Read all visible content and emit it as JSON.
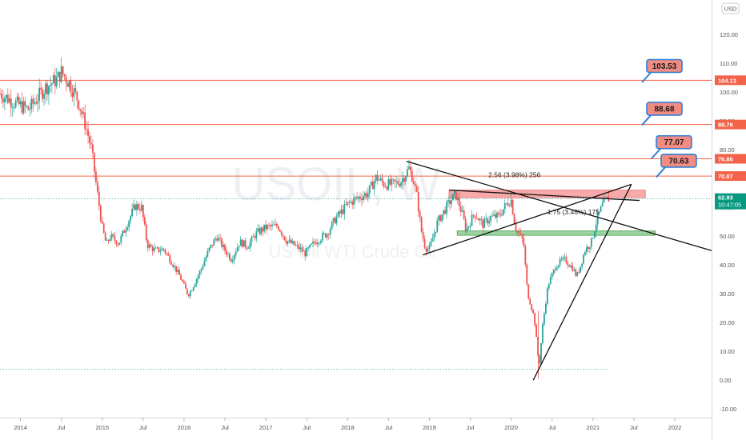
{
  "chart_data": {
    "type": "candlestick",
    "currency": "USD",
    "watermark": {
      "symbol": "USOIL, W",
      "name": "US Oil WTI Crude Oil"
    },
    "ylim": [
      -13,
      132
    ],
    "price_ticks": [
      "120.00",
      "110.00",
      "100.00",
      "90.00",
      "80.00",
      "70.00",
      "60.00",
      "50.00",
      "40.00",
      "30.00",
      "20.00",
      "10.00",
      "0.00",
      "-10.00"
    ],
    "price_tick_values": [
      120,
      110,
      100,
      90,
      80,
      70,
      60,
      50,
      40,
      30,
      20,
      10,
      0,
      -10
    ],
    "time_ticks": [
      "2014",
      "Jul",
      "2015",
      "Jul",
      "2016",
      "Jul",
      "2017",
      "Jul",
      "2018",
      "Jul",
      "2019",
      "Jul",
      "2020",
      "Jul",
      "2021",
      "Jul",
      "2022"
    ],
    "time_tick_values": [
      2014.0,
      2014.5,
      2015.0,
      2015.5,
      2016.0,
      2016.5,
      2017.0,
      2017.5,
      2018.0,
      2018.5,
      2019.0,
      2019.5,
      2020.0,
      2020.5,
      2021.0,
      2021.5,
      2022.0
    ],
    "series": [
      {
        "values": [
          [
            2013.75,
            99.5
          ],
          [
            2013.95,
            96.0
          ],
          [
            2014.1,
            94.0
          ],
          [
            2014.3,
            101.5
          ],
          [
            2014.45,
            104.5
          ],
          [
            2014.5,
            107.0
          ],
          [
            2014.6,
            103.0
          ],
          [
            2014.7,
            97.5
          ],
          [
            2014.8,
            88.0
          ],
          [
            2014.87,
            80.0
          ],
          [
            2014.93,
            67.0
          ],
          [
            2015.0,
            53.0
          ],
          [
            2015.05,
            47.0
          ],
          [
            2015.1,
            50.0
          ],
          [
            2015.2,
            47.5
          ],
          [
            2015.3,
            54.0
          ],
          [
            2015.4,
            60.5
          ],
          [
            2015.48,
            60.0
          ],
          [
            2015.55,
            47.0
          ],
          [
            2015.65,
            45.0
          ],
          [
            2015.75,
            45.5
          ],
          [
            2015.85,
            41.0
          ],
          [
            2015.95,
            36.0
          ],
          [
            2016.05,
            29.5
          ],
          [
            2016.1,
            32.0
          ],
          [
            2016.2,
            38.0
          ],
          [
            2016.3,
            45.0
          ],
          [
            2016.4,
            50.0
          ],
          [
            2016.48,
            46.0
          ],
          [
            2016.58,
            42.0
          ],
          [
            2016.68,
            48.0
          ],
          [
            2016.78,
            46.5
          ],
          [
            2016.88,
            51.0
          ],
          [
            2017.0,
            53.0
          ],
          [
            2017.15,
            53.5
          ],
          [
            2017.25,
            48.5
          ],
          [
            2017.4,
            46.0
          ],
          [
            2017.48,
            44.0
          ],
          [
            2017.6,
            48.0
          ],
          [
            2017.75,
            51.0
          ],
          [
            2017.85,
            56.0
          ],
          [
            2018.0,
            61.0
          ],
          [
            2018.1,
            63.0
          ],
          [
            2018.25,
            65.0
          ],
          [
            2018.35,
            70.5
          ],
          [
            2018.45,
            68.0
          ],
          [
            2018.55,
            68.0
          ],
          [
            2018.65,
            69.0
          ],
          [
            2018.75,
            73.5
          ],
          [
            2018.8,
            70.0
          ],
          [
            2018.85,
            63.5
          ],
          [
            2018.9,
            52.0
          ],
          [
            2018.95,
            46.0
          ],
          [
            2019.0,
            45.5
          ],
          [
            2019.1,
            55.0
          ],
          [
            2019.25,
            62.0
          ],
          [
            2019.32,
            64.5
          ],
          [
            2019.4,
            58.0
          ],
          [
            2019.45,
            52.0
          ],
          [
            2019.55,
            58.0
          ],
          [
            2019.65,
            54.0
          ],
          [
            2019.75,
            56.5
          ],
          [
            2019.85,
            57.0
          ],
          [
            2019.95,
            61.5
          ],
          [
            2020.0,
            62.5
          ],
          [
            2020.05,
            53.0
          ],
          [
            2020.15,
            48.0
          ],
          [
            2020.2,
            30.0
          ],
          [
            2020.28,
            22.0
          ],
          [
            2020.32,
            11.0
          ],
          [
            2020.34,
            4.0
          ],
          [
            2020.38,
            18.0
          ],
          [
            2020.45,
            33.0
          ],
          [
            2020.55,
            40.0
          ],
          [
            2020.65,
            42.0
          ],
          [
            2020.75,
            39.0
          ],
          [
            2020.8,
            36.0
          ],
          [
            2020.85,
            40.0
          ],
          [
            2020.9,
            45.0
          ],
          [
            2020.98,
            48.0
          ],
          [
            2021.05,
            56.0
          ],
          [
            2021.12,
            61.0
          ],
          [
            2021.18,
            63.0
          ],
          [
            2021.21,
            62.93
          ]
        ]
      }
    ],
    "current_price": {
      "label": "62.93",
      "countdown": "10:47:05",
      "value": 62.93
    },
    "horizontal_levels": [
      {
        "value": 104.13,
        "label": "104.13"
      },
      {
        "value": 88.76,
        "label": "88.76"
      },
      {
        "value": 76.86,
        "label": "76.86"
      },
      {
        "value": 70.87,
        "label": "70.87"
      }
    ],
    "callouts": [
      {
        "text": "103.53",
        "value": 103.53
      },
      {
        "text": "88.68",
        "value": 88.68
      },
      {
        "text": "77.07",
        "value": 77.07
      },
      {
        "text": "70.63",
        "value": 70.63
      }
    ],
    "resistance_zone": {
      "from": 2019.24,
      "to": 2021.64,
      "low": 63.4,
      "high": 66.0
    },
    "support_zone": {
      "from": 2019.34,
      "to": 2021.76,
      "low": 50.3,
      "high": 51.8
    },
    "trendlines": [
      {
        "from": [
          2018.72,
          76.0
        ],
        "to": [
          2022.45,
          45.0
        ]
      },
      {
        "from": [
          2019.24,
          66.0
        ],
        "to": [
          2021.57,
          62.4
        ]
      },
      {
        "from": [
          2018.92,
          43.5
        ],
        "to": [
          2021.47,
          68.0
        ]
      },
      {
        "from": [
          2020.27,
          0.0
        ],
        "to": [
          2021.47,
          68.0
        ]
      }
    ],
    "measurements": [
      {
        "text": "2.56 (3.98%) 256",
        "anchor": [
          2020.04,
          70.5
        ]
      },
      {
        "text": "1.75 (3.46%) 175",
        "anchor": [
          2020.76,
          57.6
        ]
      }
    ],
    "dotted_levels": [
      62.93,
      3.8
    ]
  }
}
